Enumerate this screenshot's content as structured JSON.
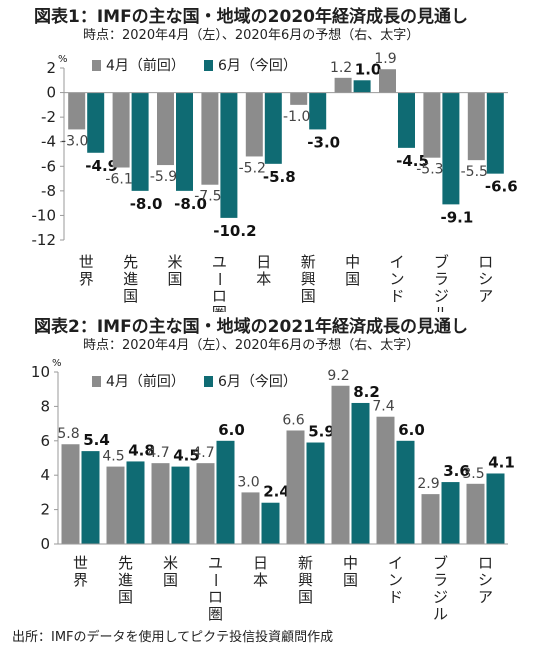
{
  "colors": {
    "prev": "#8c8c8c",
    "now": "#0f6b73",
    "axis": "#9a9a9a"
  },
  "source": "出所：IMFのデータを使用してピクテ投信投資顧問作成",
  "chart_data": [
    {
      "type": "bar",
      "title": "図表1：IMFの主な国・地域の2020年経済成長の見通し",
      "subtitle": "時点：2020年4月（左）、2020年6月の予想（右、太字）",
      "unit": "%",
      "categories": [
        "世界",
        "先進国",
        "米国",
        "ユーロ圏",
        "日本",
        "新興国",
        "中国",
        "インド",
        "ブラジル",
        "ロシア"
      ],
      "series": [
        {
          "name": "4月（前回）",
          "values": [
            -3.0,
            -6.1,
            -5.9,
            -7.5,
            -5.2,
            -1.0,
            1.2,
            1.9,
            -5.3,
            -5.5
          ]
        },
        {
          "name": "6月（今回）",
          "values": [
            -4.9,
            -8.0,
            -8.0,
            -10.2,
            -5.8,
            -3.0,
            1.0,
            -4.5,
            -9.1,
            -6.6
          ]
        }
      ],
      "ylim": [
        -12,
        2
      ],
      "yticks": [
        2,
        0,
        -2,
        -4,
        -6,
        -8,
        -10,
        -12
      ],
      "legend": "top-left"
    },
    {
      "type": "bar",
      "title": "図表2：IMFの主な国・地域の2021年経済成長の見通し",
      "subtitle": "時点：2020年4月（左）、2020年6月の予想（右、太字）",
      "unit": "%",
      "categories": [
        "世界",
        "先進国",
        "米国",
        "ユーロ圏",
        "日本",
        "新興国",
        "中国",
        "インド",
        "ブラジル",
        "ロシア"
      ],
      "series": [
        {
          "name": "4月（前回）",
          "values": [
            5.8,
            4.5,
            4.7,
            4.7,
            3.0,
            6.6,
            9.2,
            7.4,
            2.9,
            3.5
          ]
        },
        {
          "name": "6月（今回）",
          "values": [
            5.4,
            4.8,
            4.5,
            6.0,
            2.4,
            5.9,
            8.2,
            6.0,
            3.6,
            4.1
          ]
        }
      ],
      "ylim": [
        0,
        10
      ],
      "yticks": [
        10,
        8,
        6,
        4,
        2,
        0
      ],
      "legend": "top-left"
    }
  ]
}
